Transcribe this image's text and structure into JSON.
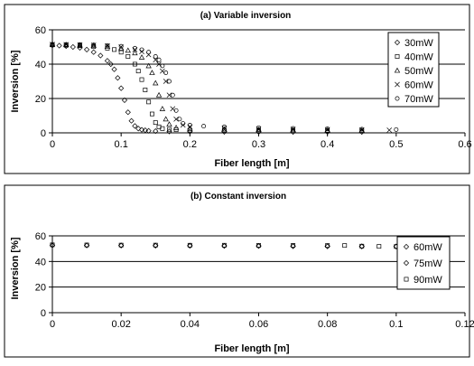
{
  "chart_data": [
    {
      "type": "scatter",
      "title": "(a) Variable inversion",
      "xlabel": "Fiber length [m]",
      "ylabel": "Inversion [%]",
      "xlim": [
        0,
        0.6
      ],
      "ylim": [
        0,
        60
      ],
      "xticks": [
        "0",
        "0.1",
        "0.2",
        "0.3",
        "0.4",
        "0.5",
        "0.6"
      ],
      "yticks": [
        "0",
        "20",
        "40",
        "60"
      ],
      "grid": "horizontal",
      "legend_position": "top-right",
      "series": [
        {
          "name": "30mW",
          "marker": "diamond",
          "x": [
            0,
            0.01,
            0.02,
            0.03,
            0.04,
            0.05,
            0.06,
            0.07,
            0.08,
            0.085,
            0.09,
            0.095,
            0.1,
            0.105,
            0.11,
            0.115,
            0.12,
            0.125,
            0.13,
            0.135,
            0.14,
            0.15,
            0.17,
            0.2,
            0.25,
            0.3,
            0.35,
            0.4,
            0.45
          ],
          "y": [
            51,
            50.8,
            50.5,
            50,
            49.5,
            48.5,
            47,
            45,
            42,
            40,
            37,
            32,
            26,
            19,
            12,
            7,
            4,
            2.5,
            1.8,
            1.5,
            1.2,
            1.0,
            0.8,
            0.7,
            0.6,
            0.5,
            0.5,
            0.5,
            0.5
          ]
        },
        {
          "name": "40mW",
          "marker": "square",
          "x": [
            0,
            0.02,
            0.04,
            0.06,
            0.08,
            0.09,
            0.1,
            0.11,
            0.12,
            0.125,
            0.13,
            0.135,
            0.14,
            0.145,
            0.15,
            0.155,
            0.16,
            0.17,
            0.18,
            0.2,
            0.25,
            0.3,
            0.35,
            0.4,
            0.45
          ],
          "y": [
            51.2,
            51,
            50.7,
            50.2,
            49.3,
            48.5,
            47,
            44.5,
            40,
            36,
            31,
            25,
            18,
            11,
            6,
            3.5,
            2.5,
            2,
            1.8,
            1.6,
            1.4,
            1.3,
            1.2,
            1.1,
            1.0
          ]
        },
        {
          "name": "50mW",
          "marker": "triangle",
          "x": [
            0,
            0.02,
            0.04,
            0.06,
            0.08,
            0.1,
            0.11,
            0.12,
            0.13,
            0.14,
            0.145,
            0.15,
            0.155,
            0.16,
            0.165,
            0.17,
            0.18,
            0.2,
            0.25,
            0.3,
            0.35,
            0.4,
            0.45
          ],
          "y": [
            51.4,
            51.3,
            51.1,
            50.8,
            50.2,
            49,
            48,
            46.5,
            44,
            39,
            35,
            29,
            22,
            14,
            8,
            5,
            3,
            2.5,
            2.1,
            1.9,
            1.7,
            1.5,
            1.4
          ]
        },
        {
          "name": "60mW",
          "marker": "cross",
          "x": [
            0,
            0.02,
            0.04,
            0.06,
            0.08,
            0.1,
            0.12,
            0.13,
            0.14,
            0.15,
            0.155,
            0.16,
            0.165,
            0.17,
            0.175,
            0.18,
            0.19,
            0.2,
            0.25,
            0.3,
            0.35,
            0.4,
            0.45,
            0.49
          ],
          "y": [
            51.5,
            51.4,
            51.3,
            51.1,
            50.7,
            50,
            48.5,
            47.3,
            45.5,
            42.5,
            40,
            36,
            30,
            22,
            14,
            8,
            4.5,
            3.5,
            2.8,
            2.4,
            2.1,
            1.9,
            1.7,
            1.6
          ]
        },
        {
          "name": "70mW",
          "marker": "circle",
          "x": [
            0,
            0.02,
            0.04,
            0.06,
            0.08,
            0.1,
            0.12,
            0.13,
            0.14,
            0.15,
            0.155,
            0.16,
            0.165,
            0.17,
            0.175,
            0.18,
            0.185,
            0.19,
            0.2,
            0.22,
            0.25,
            0.3,
            0.35,
            0.4,
            0.45,
            0.5
          ],
          "y": [
            51.6,
            51.5,
            51.4,
            51.2,
            50.9,
            50.4,
            49.3,
            48.4,
            47,
            44.5,
            42.5,
            39,
            35,
            30,
            22,
            13,
            8,
            5.5,
            4.5,
            3.9,
            3.5,
            3.0,
            2.6,
            2.3,
            2.1,
            1.9
          ]
        }
      ]
    },
    {
      "type": "scatter",
      "title": "(b) Constant inversion",
      "xlabel": "Fiber length [m]",
      "ylabel": "Inversion [%]",
      "xlim": [
        0,
        0.12
      ],
      "ylim": [
        0,
        60
      ],
      "xticks": [
        "0",
        "0.02",
        "0.04",
        "0.06",
        "0.08",
        "0.1",
        "0.12"
      ],
      "yticks": [
        "0",
        "20",
        "40",
        "60"
      ],
      "grid": "horizontal",
      "legend_position": "top-right",
      "series": [
        {
          "name": "60mW",
          "marker": "diamond",
          "x": [
            0,
            0.01,
            0.02,
            0.03,
            0.04,
            0.05,
            0.06,
            0.07,
            0.08,
            0.09,
            0.1
          ],
          "y": [
            52.6,
            52.5,
            52.4,
            52.3,
            52.2,
            52.1,
            52.0,
            51.9,
            51.8,
            51.7,
            51.6
          ]
        },
        {
          "name": "75mW",
          "marker": "diamond",
          "x": [
            0,
            0.01,
            0.02,
            0.03,
            0.04,
            0.05,
            0.06,
            0.07,
            0.08,
            0.09,
            0.1
          ],
          "y": [
            52.8,
            52.7,
            52.6,
            52.5,
            52.4,
            52.3,
            52.2,
            52.1,
            52.0,
            51.9,
            51.8
          ]
        },
        {
          "name": "90mW",
          "marker": "square",
          "x": [
            0,
            0.01,
            0.02,
            0.03,
            0.04,
            0.05,
            0.06,
            0.07,
            0.08,
            0.085,
            0.09,
            0.095,
            0.1
          ],
          "y": [
            53,
            52.9,
            52.8,
            52.8,
            52.7,
            52.7,
            52.6,
            52.6,
            52.5,
            52.5,
            52.0,
            51.8,
            51.7
          ]
        }
      ]
    }
  ]
}
